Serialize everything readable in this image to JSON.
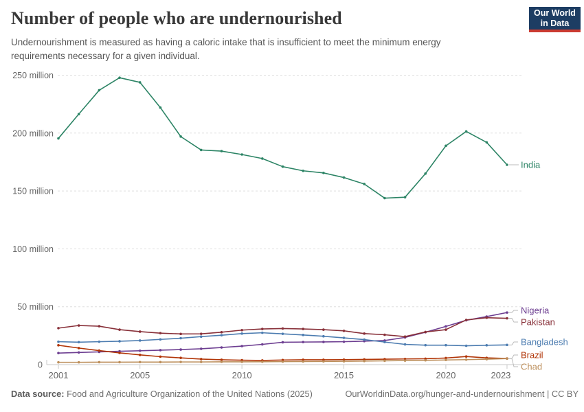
{
  "header": {
    "title": "Number of people who are undernourished",
    "subtitle": "Undernourishment is measured as having a caloric intake that is insufficient to meet the minimum energy requirements necessary for a given individual.",
    "logo": {
      "line1": "Our World",
      "line2": "in Data",
      "bg_color": "#1d3d63",
      "accent_color": "#cb3b31"
    }
  },
  "footer": {
    "source_label": "Data source:",
    "source_text": "Food and Agriculture Organization of the United Nations (2025)",
    "link_text": "OurWorldinData.org/hunger-and-undernourishment | CC BY"
  },
  "chart_data": {
    "type": "line",
    "x": [
      2001,
      2002,
      2003,
      2004,
      2005,
      2006,
      2007,
      2008,
      2009,
      2010,
      2011,
      2012,
      2013,
      2014,
      2015,
      2016,
      2017,
      2018,
      2019,
      2020,
      2021,
      2022,
      2023
    ],
    "x_ticks": [
      2001,
      2005,
      2010,
      2015,
      2020,
      2023
    ],
    "y_ticks": [
      {
        "value": 0,
        "label": "0"
      },
      {
        "value": 50,
        "label": "50 million"
      },
      {
        "value": 100,
        "label": "100 million"
      },
      {
        "value": 150,
        "label": "150 million"
      },
      {
        "value": 200,
        "label": "200 million"
      },
      {
        "value": 250,
        "label": "250 million"
      }
    ],
    "ylim": [
      0,
      250
    ],
    "unit": "million people",
    "grid": "dashed-horizontal",
    "legend_position": "right-of-line-ends",
    "series": [
      {
        "name": "India",
        "color": "#2C8465",
        "values": [
          195.4,
          216.4,
          237.0,
          247.8,
          243.8,
          222.0,
          197.0,
          185.4,
          184.4,
          181.5,
          178.0,
          171.0,
          167.4,
          165.6,
          161.6,
          156.0,
          143.8,
          144.6,
          165.0,
          189.0,
          201.4,
          192.0,
          172.6
        ]
      },
      {
        "name": "Nigeria",
        "color": "#6D3E91",
        "values": [
          10.0,
          10.5,
          11.0,
          11.5,
          12.0,
          12.5,
          13.0,
          13.7,
          14.8,
          16.0,
          17.5,
          19.3,
          19.5,
          19.6,
          19.8,
          20.3,
          20.8,
          23.5,
          28.0,
          33.0,
          38.3,
          41.5,
          45.0
        ]
      },
      {
        "name": "Pakistan",
        "color": "#883039",
        "values": [
          31.5,
          33.8,
          33.2,
          30.2,
          28.5,
          27.2,
          26.5,
          26.6,
          28.0,
          29.8,
          30.8,
          31.2,
          30.8,
          30.2,
          29.2,
          26.8,
          25.8,
          24.2,
          28.2,
          30.2,
          38.6,
          40.5,
          40.0
        ]
      },
      {
        "name": "Bangladesh",
        "color": "#4C7CB0",
        "values": [
          19.8,
          19.4,
          19.8,
          20.2,
          20.8,
          21.8,
          22.8,
          24.2,
          25.4,
          26.8,
          27.5,
          26.6,
          25.6,
          24.5,
          23.1,
          21.6,
          19.5,
          17.5,
          16.8,
          16.8,
          16.3,
          16.7,
          17.0
        ]
      },
      {
        "name": "Brazil",
        "color": "#B13507",
        "values": [
          16.7,
          14.3,
          12.1,
          10.1,
          8.4,
          6.9,
          5.8,
          4.8,
          4.2,
          3.8,
          3.6,
          4.0,
          4.2,
          4.2,
          4.3,
          4.5,
          4.7,
          4.9,
          5.1,
          5.7,
          7.0,
          5.8,
          5.3
        ]
      },
      {
        "name": "Chad",
        "color": "#BC8E5A",
        "values": [
          2.0,
          2.0,
          2.1,
          2.1,
          2.2,
          2.2,
          2.3,
          2.3,
          2.4,
          2.4,
          2.5,
          2.6,
          2.7,
          2.8,
          2.9,
          3.1,
          3.3,
          3.5,
          3.7,
          4.0,
          4.3,
          4.7,
          5.2
        ]
      }
    ]
  }
}
